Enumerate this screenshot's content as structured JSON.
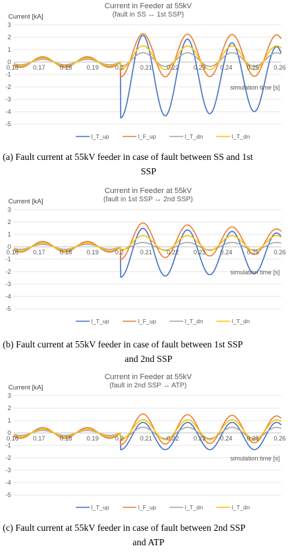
{
  "chart_data": [
    {
      "type": "line",
      "title": "Current in Feeder at 55kV",
      "subtitle": "(fault in SS ↔ 1st SSP)",
      "ylabel": "Current [kA]",
      "xlabel": "simulation time [s]",
      "ylim": [
        -5,
        3
      ],
      "xlim": [
        0.16,
        0.26
      ],
      "x_ticks": [
        "0.16",
        "0.17",
        "0.18",
        "0.19",
        "0.2",
        "0.21",
        "0.22",
        "0.23",
        "0.24",
        "0.25",
        "0.26"
      ],
      "y_ticks": [
        "3",
        "2",
        "1",
        "0",
        "-1",
        "-2",
        "-3",
        "-4",
        "-5"
      ],
      "grid": true,
      "legend_position": "bottom",
      "series": [
        {
          "name": "I_T_up",
          "color": "#4472C4",
          "prefault_amp": 0.42,
          "fault_offset": -1.1,
          "fault_amp": 3.4,
          "fault_phase": 3.1416,
          "fault_amp_change": -0.25,
          "fault_offset_change": 0.22
        },
        {
          "name": "I_F_up",
          "color": "#ED7D31",
          "prefault_amp": 0.42,
          "fault_offset": 0.55,
          "fault_amp": 1.75,
          "fault_phase": 0,
          "fault_amp_change": -0.05,
          "fault_offset_change": -0.05
        },
        {
          "name": "I_T_dn",
          "color": "#A5A5A5",
          "prefault_amp": 0.22,
          "fault_offset": 0.2,
          "fault_amp": 0.55,
          "fault_phase": 0,
          "fault_amp_change": 0,
          "fault_offset_change": 0
        },
        {
          "name": "I_T_dn",
          "color": "#FFC000",
          "prefault_amp": 0.32,
          "fault_offset": 0.35,
          "fault_amp": 0.95,
          "fault_phase": 0,
          "fault_amp_change": 0,
          "fault_offset_change": 0
        }
      ]
    },
    {
      "type": "line",
      "title": "Current in Feeder at 55kV",
      "subtitle": "(fault in 1st SSP ↔ 2nd SSP)",
      "ylabel": "Current [kA]",
      "xlabel": "simulation time [s]",
      "ylim": [
        -5,
        3
      ],
      "xlim": [
        0.16,
        0.26
      ],
      "x_ticks": [
        "0.16",
        "0.17",
        "0.18",
        "0.19",
        "0.2",
        "0.21",
        "0.22",
        "0.23",
        "0.24",
        "0.25",
        "0.26"
      ],
      "y_ticks": [
        "3",
        "2",
        "1",
        "0",
        "-1",
        "-2",
        "-3",
        "-4",
        "-5"
      ],
      "grid": true,
      "legend_position": "bottom",
      "series": [
        {
          "name": "I_T_up",
          "color": "#4472C4",
          "prefault_amp": 0.42,
          "fault_offset": -0.45,
          "fault_amp": 2.0,
          "fault_phase": 3.1416,
          "fault_amp_change": -0.2,
          "fault_offset_change": 0.1
        },
        {
          "name": "I_F_up",
          "color": "#ED7D31",
          "prefault_amp": 0.42,
          "fault_offset": 0.5,
          "fault_amp": 1.5,
          "fault_phase": 0,
          "fault_amp_change": -0.35,
          "fault_offset_change": -0.1
        },
        {
          "name": "I_T_dn",
          "color": "#A5A5A5",
          "prefault_amp": 0.2,
          "fault_offset": 0.05,
          "fault_amp": 0.3,
          "fault_phase": 0,
          "fault_amp_change": 0,
          "fault_offset_change": 0
        },
        {
          "name": "I_T_dn",
          "color": "#FFC000",
          "prefault_amp": 0.3,
          "fault_offset": 0.3,
          "fault_amp": 0.6,
          "fault_phase": 0,
          "fault_amp_change": 0,
          "fault_offset_change": 0
        }
      ]
    },
    {
      "type": "line",
      "title": "Current in Feeder at 55kV",
      "subtitle": "(fault in 2nd SSP ↔ ATP)",
      "ylabel": "Current [kA]",
      "xlabel": "simulation time [s]",
      "ylim": [
        -5,
        3
      ],
      "xlim": [
        0.16,
        0.26
      ],
      "x_ticks": [
        "0.16",
        "0.17",
        "0.18",
        "0.19",
        "0.2",
        "0.21",
        "0.22",
        "0.23",
        "0.24",
        "0.25",
        "0.26"
      ],
      "y_ticks": [
        "3",
        "2",
        "1",
        "0",
        "-1",
        "-2",
        "-3",
        "-4",
        "-5"
      ],
      "grid": true,
      "legend_position": "bottom",
      "series": [
        {
          "name": "I_T_up",
          "color": "#4472C4",
          "prefault_amp": 0.42,
          "fault_offset": -0.25,
          "fault_amp": 1.1,
          "fault_phase": 3.1416,
          "fault_amp_change": 0,
          "fault_offset_change": 0
        },
        {
          "name": "I_F_up",
          "color": "#ED7D31",
          "prefault_amp": 0.42,
          "fault_offset": 0.3,
          "fault_amp": 1.25,
          "fault_phase": 0,
          "fault_amp_change": -0.15,
          "fault_offset_change": 0
        },
        {
          "name": "I_T_dn",
          "color": "#A5A5A5",
          "prefault_amp": 0.2,
          "fault_offset": 0.0,
          "fault_amp": 0.45,
          "fault_phase": 0,
          "fault_amp_change": 0,
          "fault_offset_change": 0
        },
        {
          "name": "I_T_dn",
          "color": "#FFC000",
          "prefault_amp": 0.3,
          "fault_offset": 0.25,
          "fault_amp": 0.8,
          "fault_phase": 0,
          "fault_amp_change": 0,
          "fault_offset_change": 0
        }
      ]
    }
  ],
  "captions": [
    {
      "line1": "(a) Fault current at 55kV feeder in case of fault between SS and 1st",
      "line2": "SSP"
    },
    {
      "line1": "(b) Fault current at 55kV feeder in case of fault between 1st SSP",
      "line2": "and 2nd SSP"
    },
    {
      "line1": "(c) Fault current at 55kV feeder in case of fault between 2nd SSP",
      "line2": "and ATP"
    }
  ],
  "fault_time": 0.2,
  "frequency_hz": 60
}
